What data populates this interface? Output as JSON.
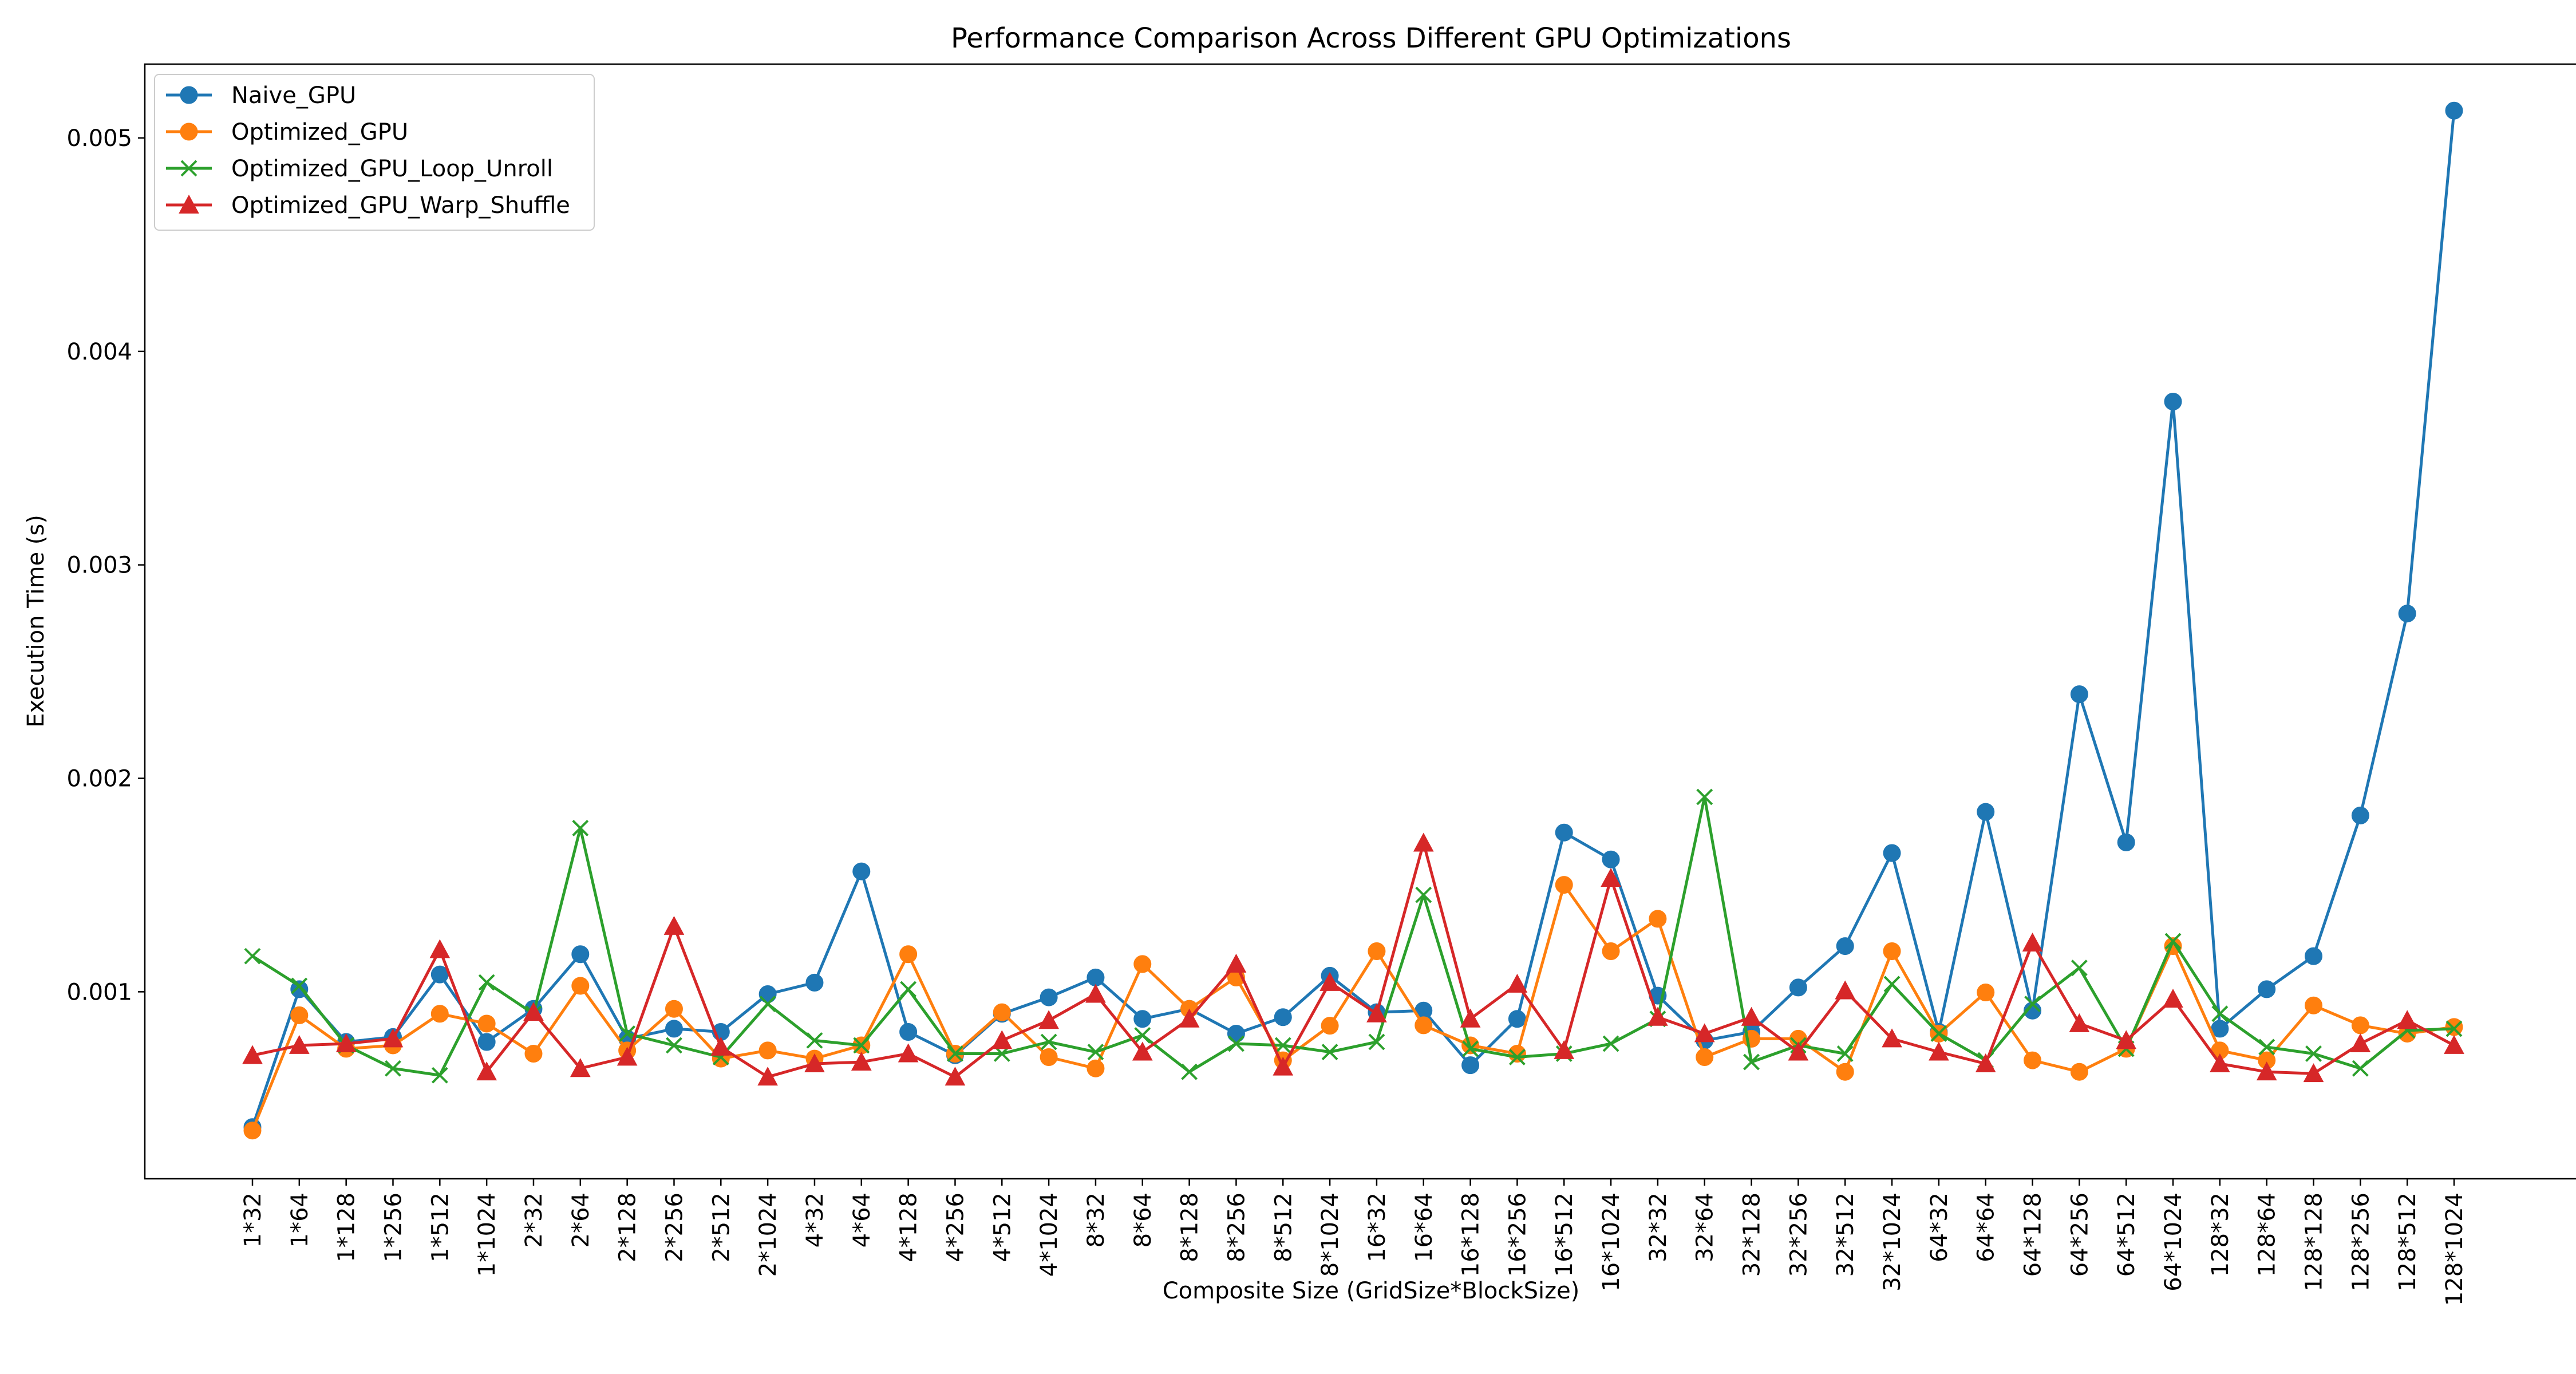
{
  "chart_data": {
    "type": "line",
    "title": "Performance Comparison Across Different GPU Optimizations",
    "xlabel": "Composite Size (GridSize*BlockSize)",
    "ylabel": "Execution Time (s)",
    "ylim": [
      0.000124,
      0.005346
    ],
    "yticks": [
      0.001,
      0.002,
      0.003,
      0.004,
      0.005
    ],
    "ytick_labels": [
      "0.001",
      "0.002",
      "0.003",
      "0.004",
      "0.005"
    ],
    "grid": false,
    "legend_position": "top-left",
    "categories": [
      "1*32",
      "1*64",
      "1*128",
      "1*256",
      "1*512",
      "1*1024",
      "2*32",
      "2*64",
      "2*128",
      "2*256",
      "2*512",
      "2*1024",
      "4*32",
      "4*64",
      "4*128",
      "4*256",
      "4*512",
      "4*1024",
      "8*32",
      "8*64",
      "8*128",
      "8*256",
      "8*512",
      "8*1024",
      "16*32",
      "16*64",
      "16*128",
      "16*256",
      "16*512",
      "16*1024",
      "32*32",
      "32*64",
      "32*128",
      "32*256",
      "32*512",
      "32*1024",
      "64*32",
      "64*64",
      "64*128",
      "64*256",
      "64*512",
      "64*1024",
      "128*32",
      "128*64",
      "128*128",
      "128*256",
      "128*512",
      "128*1024"
    ],
    "series": [
      {
        "name": "Naive_GPU",
        "color": "#1f77b4",
        "marker": "circle",
        "values": [
          0.000366,
          0.001012,
          0.000765,
          0.000788,
          0.001081,
          0.000765,
          0.00092,
          0.001176,
          0.00078,
          0.000827,
          0.000812,
          0.000989,
          0.001043,
          0.001564,
          0.000812,
          0.000703,
          0.000897,
          0.000974,
          0.001067,
          0.000873,
          0.00092,
          0.000804,
          0.000881,
          0.001075,
          0.000904,
          0.000912,
          0.000656,
          0.000873,
          0.001746,
          0.00162,
          0.000982,
          0.000772,
          0.000812,
          0.00102,
          0.001214,
          0.00165,
          0.000812,
          0.001843,
          0.000912,
          0.002394,
          0.0017,
          0.003765,
          0.000827,
          0.001012,
          0.001167,
          0.001826,
          0.002772,
          0.005128
        ]
      },
      {
        "name": "Optimized_GPU",
        "color": "#ff7f0e",
        "marker": "circle",
        "values": [
          0.00035,
          0.00089,
          0.000733,
          0.000749,
          0.000897,
          0.000851,
          0.00071,
          0.001028,
          0.000725,
          0.00092,
          0.000687,
          0.000725,
          0.000687,
          0.000749,
          0.001176,
          0.00071,
          0.000904,
          0.000694,
          0.000641,
          0.00113,
          0.00092,
          0.001067,
          0.000679,
          0.000841,
          0.00119,
          0.000843,
          0.000749,
          0.00071,
          0.001501,
          0.00119,
          0.001342,
          0.000694,
          0.00078,
          0.00078,
          0.000625,
          0.00119,
          0.000804,
          0.000997,
          0.000679,
          0.000625,
          0.000733,
          0.001214,
          0.000725,
          0.000679,
          0.000936,
          0.000843,
          0.000804,
          0.000835
        ]
      },
      {
        "name": "Optimized_GPU_Loop_Unroll",
        "color": "#2ca02c",
        "marker": "x",
        "values": [
          0.001167,
          0.001028,
          0.000749,
          0.000641,
          0.000609,
          0.001044,
          0.000897,
          0.001767,
          0.000804,
          0.000749,
          0.000694,
          0.000943,
          0.000772,
          0.000749,
          0.001012,
          0.00071,
          0.00071,
          0.000765,
          0.000718,
          0.000796,
          0.000625,
          0.000757,
          0.000749,
          0.000718,
          0.000765,
          0.001454,
          0.000733,
          0.000694,
          0.00071,
          0.000757,
          0.000873,
          0.001913,
          0.000671,
          0.000749,
          0.00071,
          0.001036,
          0.000804,
          0.000679,
          0.000943,
          0.001112,
          0.000733,
          0.001237,
          0.000897,
          0.000741,
          0.00071,
          0.000641,
          0.000819,
          0.000827
        ]
      },
      {
        "name": "Optimized_GPU_Warp_Shuffle",
        "color": "#d62728",
        "marker": "triangle",
        "values": [
          0.000702,
          0.000749,
          0.000757,
          0.00078,
          0.001198,
          0.000625,
          0.000904,
          0.000641,
          0.000694,
          0.001307,
          0.000741,
          0.000601,
          0.000663,
          0.000671,
          0.00071,
          0.000601,
          0.000772,
          0.000866,
          0.000989,
          0.000718,
          0.000873,
          0.00113,
          0.000648,
          0.001044,
          0.000897,
          0.001697,
          0.000873,
          0.001036,
          0.000725,
          0.001532,
          0.000881,
          0.000804,
          0.000881,
          0.000718,
          0.001005,
          0.00078,
          0.000718,
          0.000663,
          0.001229,
          0.000851,
          0.000772,
          0.000966,
          0.000663,
          0.000625,
          0.000617,
          0.000757,
          0.000866,
          0.000749
        ]
      }
    ]
  }
}
